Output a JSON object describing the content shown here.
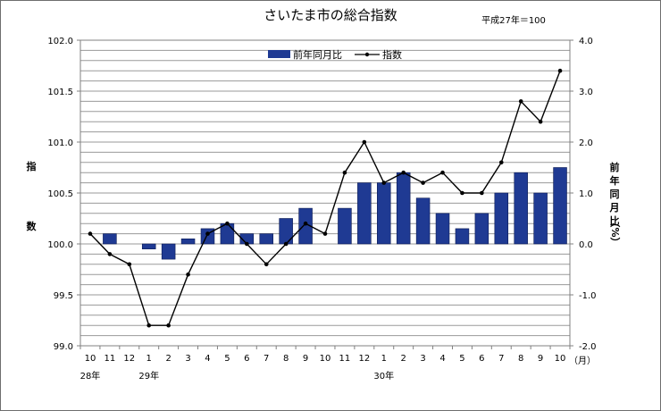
{
  "chart_data": {
    "type": "bar+line",
    "title": "さいたま市の総合指数",
    "base_note": "平成27年＝100",
    "categories": [
      "10",
      "11",
      "12",
      "1",
      "2",
      "3",
      "4",
      "5",
      "6",
      "7",
      "8",
      "9",
      "10",
      "11",
      "12",
      "1",
      "2",
      "3",
      "4",
      "5",
      "6",
      "7",
      "8",
      "9",
      "10"
    ],
    "x_unit_label": "（月）",
    "year_labels": [
      {
        "text": "28年",
        "index": 0
      },
      {
        "text": "29年",
        "index": 3
      },
      {
        "text": "30年",
        "index": 15
      }
    ],
    "series": [
      {
        "name": "前年同月比",
        "type": "bar",
        "axis": "right",
        "color": "#1f3a93",
        "values": [
          null,
          0.2,
          null,
          -0.1,
          -0.3,
          0.1,
          0.3,
          0.4,
          0.2,
          0.2,
          0.5,
          0.7,
          null,
          0.7,
          1.2,
          1.2,
          1.4,
          0.9,
          0.6,
          0.3,
          0.6,
          1.0,
          1.4,
          1.0,
          1.5
        ]
      },
      {
        "name": "指数",
        "type": "line",
        "axis": "left",
        "color": "#000000",
        "values": [
          100.1,
          99.9,
          99.8,
          99.2,
          99.2,
          99.7,
          100.1,
          100.2,
          100.0,
          99.8,
          100.0,
          100.2,
          100.1,
          100.7,
          101.0,
          100.6,
          100.7,
          100.6,
          100.7,
          100.5,
          100.5,
          100.8,
          101.4,
          101.2,
          101.7
        ]
      }
    ],
    "y_left": {
      "label": [
        "指",
        "数"
      ],
      "min": 99.0,
      "max": 102.0,
      "ticks": [
        "102.0",
        "101.5",
        "101.0",
        "100.5",
        "100.0",
        "99.5",
        "99.0"
      ]
    },
    "y_right": {
      "label": [
        "前",
        "年",
        "同",
        "月",
        "比",
        "（%）"
      ],
      "min": -2.0,
      "max": 4.0,
      "ticks": [
        "4.0",
        "3.0",
        "2.0",
        "1.0",
        "0.0",
        "-1.0",
        "-2.0"
      ]
    },
    "grid": true,
    "legend_position": "top-right"
  }
}
